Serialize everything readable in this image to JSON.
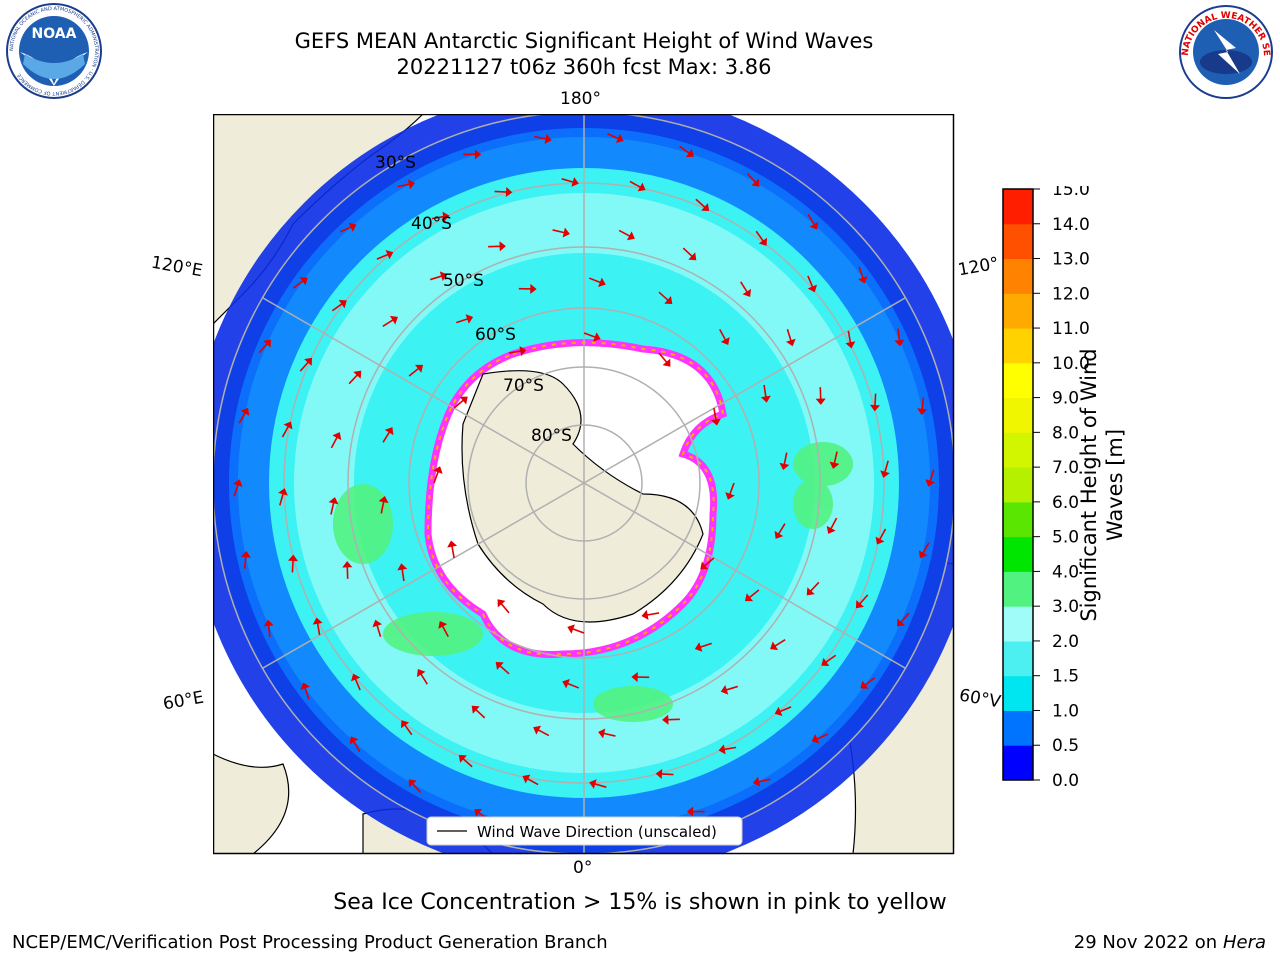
{
  "title": {
    "line1": "GEFS MEAN Antarctic Significant Height of Wind Waves",
    "line2": "20221127 t06z 360h fcst   Max: 3.86"
  },
  "logos": {
    "noaa": {
      "text": "NOAA",
      "ring_text": "NATIONAL OCEANIC AND ATMOSPHERIC ADMINISTRATION · U.S. DEPARTMENT OF COMMERCE"
    },
    "nws": {
      "ring_text": "NATIONAL WEATHER SERVICE"
    }
  },
  "map": {
    "projection": "south-polar-stereographic",
    "longitude_labels": {
      "top": "180°",
      "bottom": "0°",
      "upper_left": "120°E",
      "upper_right": "120°",
      "lower_left": "60°E",
      "lower_right": "60°V"
    },
    "latitude_labels": [
      "30°S",
      "40°S",
      "50°S",
      "60°S",
      "70°S",
      "80°S"
    ],
    "legend": "Wind Wave Direction (unscaled)",
    "colors": {
      "land": "#efedd9",
      "ice": "#ffffff",
      "grid": "#b0b0b0",
      "arrow": "#e00000"
    }
  },
  "colorbar": {
    "label_line1": "Significant Height of Wind",
    "label_line2": "Waves [m]",
    "ticks": [
      "0.0",
      "0.5",
      "1.0",
      "1.5",
      "2.0",
      "3.0",
      "4.0",
      "5.0",
      "6.0",
      "7.0",
      "8.0",
      "9.0",
      "10.0",
      "11.0",
      "12.0",
      "13.0",
      "14.0",
      "15.0"
    ],
    "colors": [
      "#0000ff",
      "#0073ff",
      "#00e6f0",
      "#4df0f0",
      "#9ffcf8",
      "#52f281",
      "#00e600",
      "#5ae600",
      "#b4f000",
      "#d2f500",
      "#f0f500",
      "#ffff00",
      "#ffd200",
      "#ffaa00",
      "#ff8200",
      "#ff5000",
      "#ff1e00"
    ]
  },
  "note": "Sea Ice Concentration > 15% is shown in pink to yellow",
  "footer": {
    "left": "NCEP/EMC/Verification Post Processing Product Generation Branch",
    "right_date": "29 Nov 2022 on",
    "right_host": "Hera"
  }
}
